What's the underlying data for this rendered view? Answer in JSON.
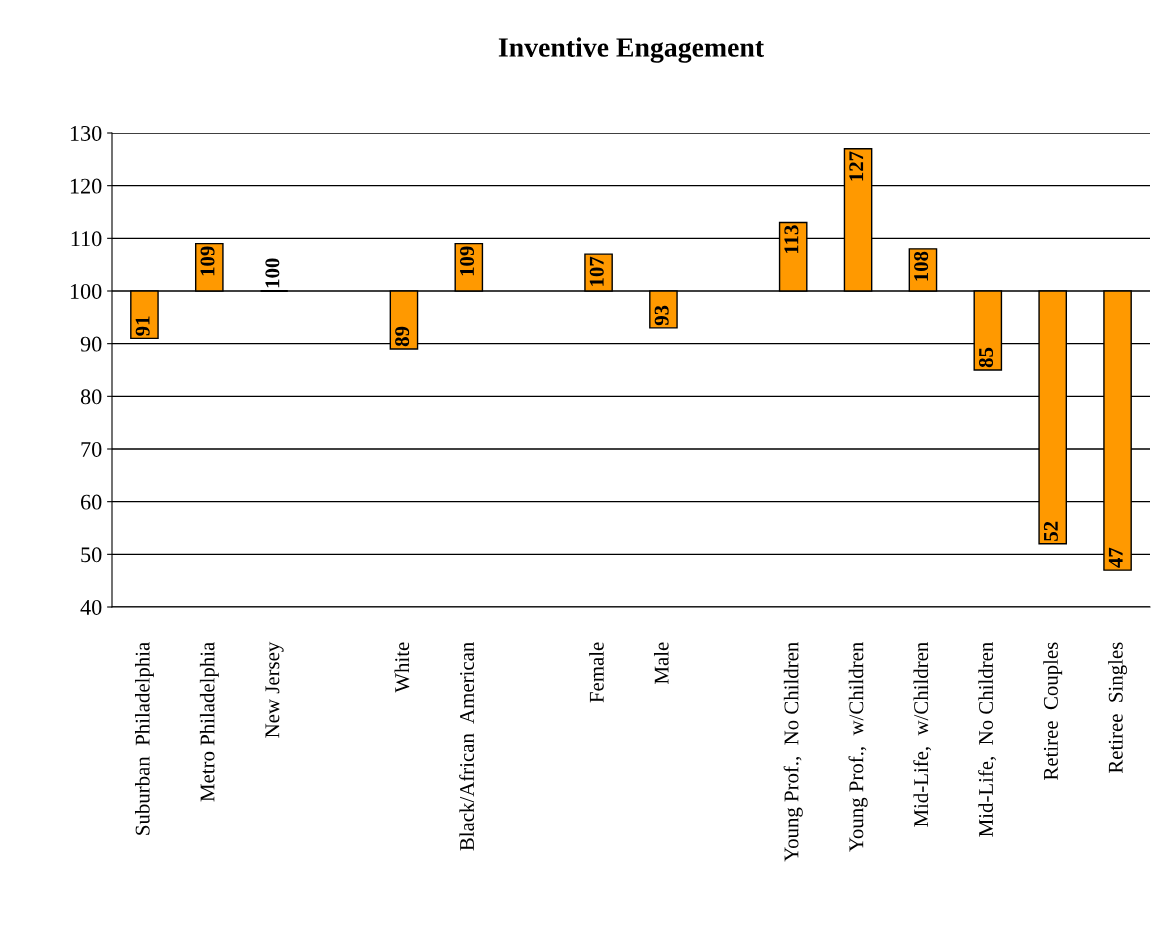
{
  "chart_data": {
    "type": "bar",
    "title": "Inventive Engagement",
    "categories": [
      "Suburban  Philadelphia",
      "Metro Philadelphia",
      "New Jersey",
      null,
      "White",
      "Black/African  American",
      null,
      "Female",
      "Male",
      null,
      "Young Prof.,  No Children",
      "Young Prof.,  w/Children",
      "Mid-Life,  w/Children",
      "Mid-Life,  No Children",
      "Retiree  Couples",
      "Retiree  Singles"
    ],
    "base": [
      100,
      100,
      100,
      null,
      100,
      100,
      null,
      100,
      100,
      null,
      100,
      100,
      100,
      100,
      100,
      100
    ],
    "values": [
      -9,
      9,
      0,
      null,
      -11,
      9,
      null,
      7,
      -7,
      null,
      13,
      27,
      8,
      -15,
      -48,
      -53
    ],
    "value_labels": [
      "91",
      "109",
      "100",
      null,
      "89",
      "109",
      null,
      "107",
      "93",
      null,
      "113",
      "127",
      "108",
      "85",
      "52",
      "47"
    ],
    "colors": [
      "#ff9900",
      "#ff9900",
      "#000000",
      null,
      "#ff9900",
      "#ff9900",
      null,
      "#ff9900",
      "#ff9900",
      null,
      "#ff9900",
      "#ff9900",
      "#ff9900",
      "#ff9900",
      "#ff9900",
      "#ff9900"
    ],
    "ylim": [
      40,
      130
    ],
    "yticks": [
      40,
      50,
      60,
      70,
      80,
      90,
      100,
      110,
      120,
      130
    ],
    "grid": "y"
  }
}
